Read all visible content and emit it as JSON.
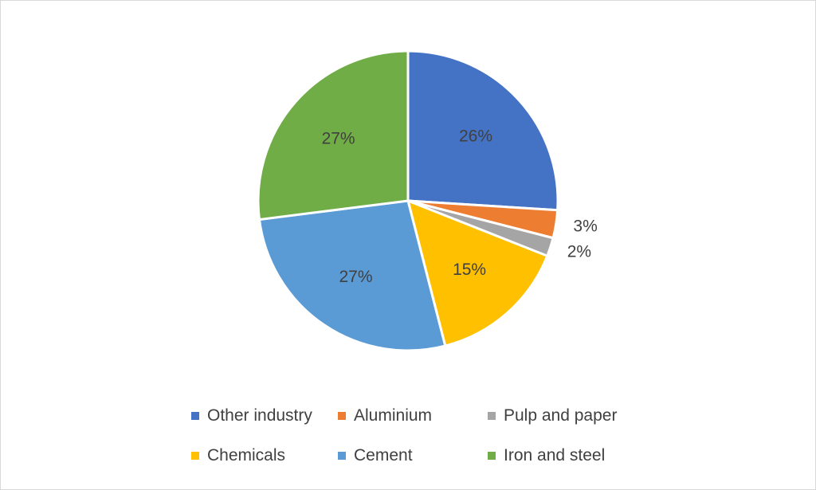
{
  "chart_data": {
    "type": "pie",
    "title": "",
    "start_angle_deg": 0,
    "direction": "clockwise",
    "legend_position": "bottom",
    "slices": [
      {
        "label": "Other industry",
        "value": 26,
        "display": "26%",
        "color": "#4472C4",
        "label_placement": "inside"
      },
      {
        "label": "Aluminium",
        "value": 3,
        "display": "3%",
        "color": "#ED7D31",
        "label_placement": "outside"
      },
      {
        "label": "Pulp and paper",
        "value": 2,
        "display": "2%",
        "color": "#A5A5A5",
        "label_placement": "outside"
      },
      {
        "label": "Chemicals",
        "value": 15,
        "display": "15%",
        "color": "#FFC000",
        "label_placement": "inside"
      },
      {
        "label": "Cement",
        "value": 27,
        "display": "27%",
        "color": "#5B9BD5",
        "label_placement": "inside"
      },
      {
        "label": "Iron and steel",
        "value": 27,
        "display": "27%",
        "color": "#70AD47",
        "label_placement": "inside"
      }
    ]
  }
}
